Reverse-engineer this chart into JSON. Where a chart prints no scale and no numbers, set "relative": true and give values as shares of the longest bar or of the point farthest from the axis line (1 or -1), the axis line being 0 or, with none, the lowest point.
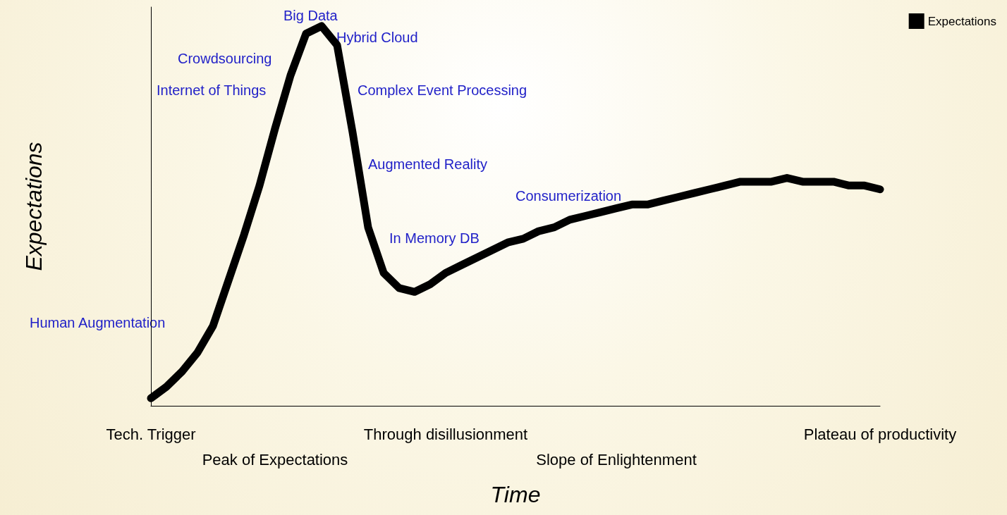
{
  "chart_data": {
    "type": "line",
    "relative": true,
    "xlabel": "Time",
    "ylabel": "Expectations",
    "legend": "top right",
    "grid": false,
    "line_style": "solid",
    "tick_labels": "x",
    "categories": [
      "Tech. Trigger",
      null,
      null,
      null,
      null,
      null,
      null,
      null,
      "Peak of Expectations",
      null,
      null,
      null,
      null,
      null,
      null,
      null,
      null,
      null,
      null,
      "Through disillusionment",
      null,
      null,
      null,
      null,
      null,
      null,
      null,
      null,
      null,
      null,
      "Slope of Enlightenment",
      null,
      null,
      null,
      null,
      null,
      null,
      null,
      null,
      null,
      null,
      null,
      null,
      null,
      null,
      null,
      null,
      "Plateau of productivity"
    ],
    "series": [
      {
        "name": "Expectations",
        "color": "#000000",
        "values": [
          0.02,
          0.05,
          0.09,
          0.14,
          0.21,
          0.33,
          0.45,
          0.58,
          0.73,
          0.87,
          0.98,
          1.0,
          0.95,
          0.72,
          0.47,
          0.35,
          0.31,
          0.3,
          0.32,
          0.35,
          0.37,
          0.39,
          0.41,
          0.43,
          0.44,
          0.46,
          0.47,
          0.49,
          0.5,
          0.51,
          0.52,
          0.53,
          0.53,
          0.54,
          0.55,
          0.56,
          0.57,
          0.58,
          0.59,
          0.59,
          0.59,
          0.6,
          0.59,
          0.59,
          0.59,
          0.58,
          0.58,
          0.57
        ]
      }
    ],
    "annotations": [
      "Big Data",
      "Hybrid Cloud",
      "Crowdsourcing",
      "Internet of Things",
      "Complex Event Processing",
      "Augmented Reality",
      "Consumerization",
      "In Memory DB",
      "Human Augmentation"
    ]
  }
}
